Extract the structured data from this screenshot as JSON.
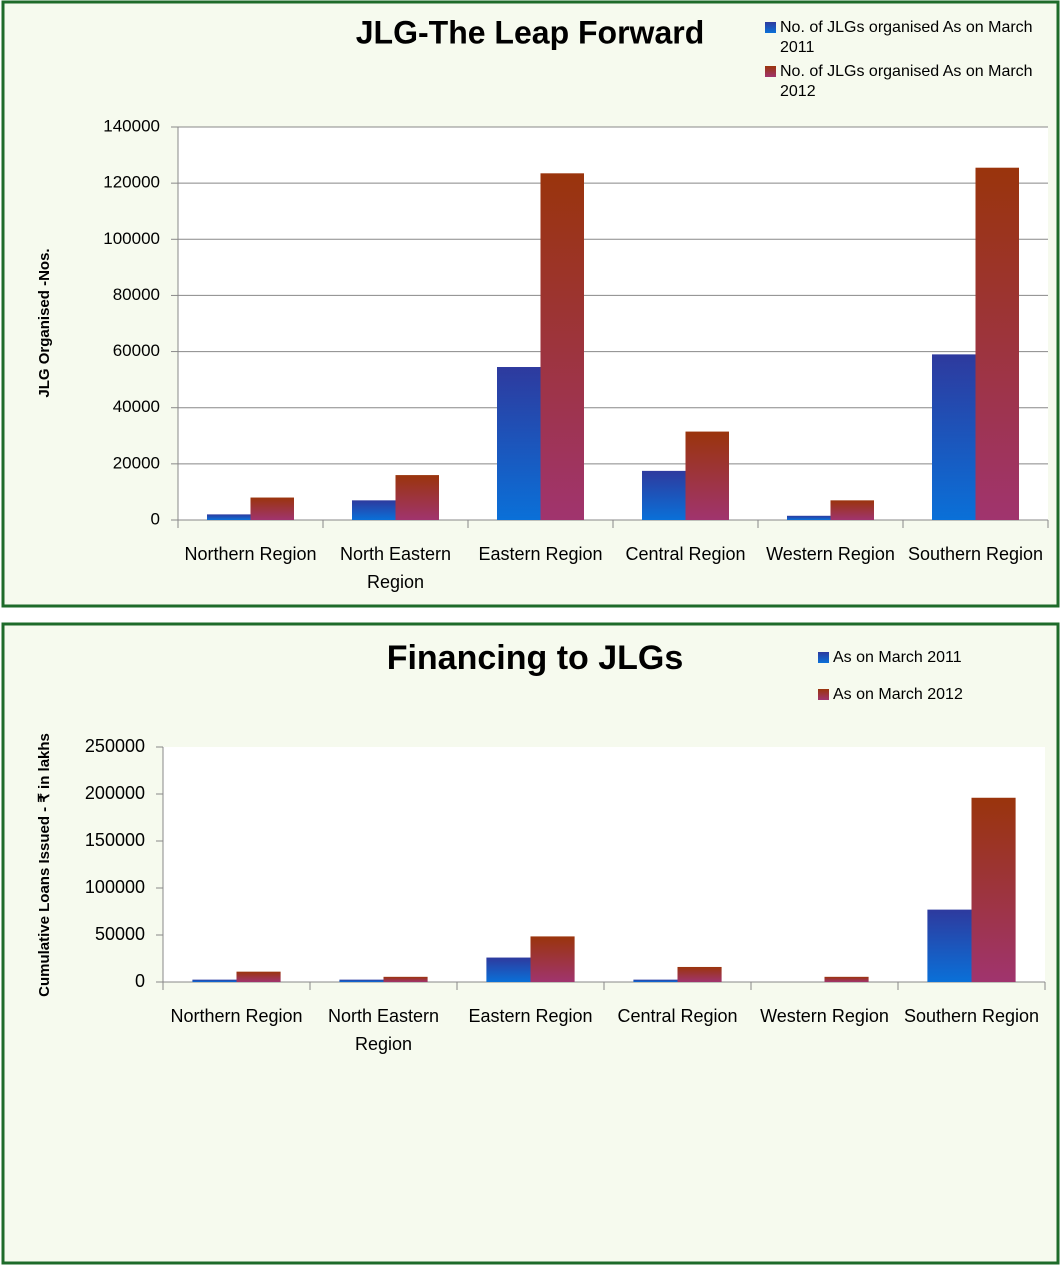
{
  "chart_data": [
    {
      "type": "bar",
      "title": "JLG-The Leap Forward",
      "y_label": "JLG Organised -Nos.",
      "categories": [
        "Northern Region",
        "North Eastern Region",
        "Eastern Region",
        "Central Region",
        "Western Region",
        "Southern Region"
      ],
      "series": [
        {
          "name": "No. of JLGs organised As on March 2011",
          "color": "#2e3a9e",
          "values": [
            2000,
            7000,
            54500,
            17500,
            1500,
            59000
          ]
        },
        {
          "name": "No. of JLGs organised As on March 2012",
          "color": "#9a340c",
          "values": [
            8000,
            16000,
            123500,
            31500,
            7000,
            125500
          ]
        }
      ],
      "ylim": [
        0,
        140000
      ],
      "yticks": [
        0,
        20000,
        40000,
        60000,
        80000,
        100000,
        120000,
        140000
      ],
      "grid": true
    },
    {
      "type": "bar",
      "title": "Financing to  JLGs",
      "y_label": "Cumulative Loans Issued - ₹ in lakhs",
      "categories": [
        "Northern Region",
        "North Eastern Region",
        "Eastern Region",
        "Central Region",
        "Western Region",
        "Southern Region"
      ],
      "series": [
        {
          "name": "As on March 2011",
          "color": "#2e3a9e",
          "values": [
            2500,
            2500,
            26000,
            2500,
            0,
            77000
          ]
        },
        {
          "name": "As on March 2012",
          "color": "#9a340c",
          "values": [
            11000,
            5500,
            48500,
            16000,
            5500,
            196000
          ]
        }
      ],
      "ylim": [
        0,
        250000
      ],
      "yticks": [
        0,
        50000,
        100000,
        150000,
        200000,
        250000
      ],
      "grid": false
    }
  ]
}
